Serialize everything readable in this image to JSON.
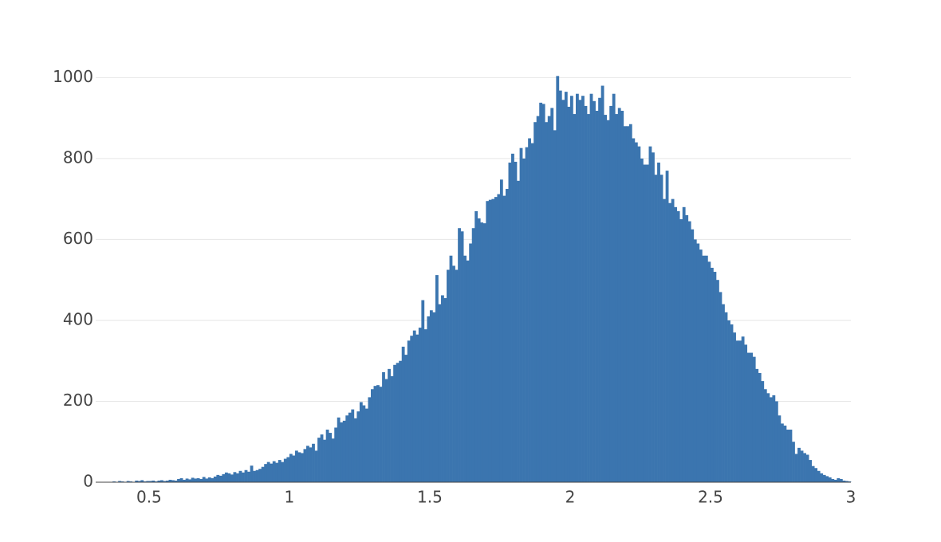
{
  "chart_data": {
    "type": "histogram",
    "color": "#3b75af",
    "grid": true,
    "xlim": [
      0.31,
      3
    ],
    "ylim": [
      0,
      1050
    ],
    "xticks": [
      0.5,
      1,
      1.5,
      2,
      2.5,
      3
    ],
    "yticks": [
      0,
      200,
      400,
      600,
      800,
      1000
    ],
    "bins": [
      0.31,
      0.32,
      0.33,
      0.34,
      0.35,
      0.36,
      0.37,
      0.38,
      0.39,
      0.4,
      0.41,
      0.42,
      0.43,
      0.44,
      0.45,
      0.46,
      0.47,
      0.48,
      0.49,
      0.5,
      0.51,
      0.52,
      0.53,
      0.54,
      0.55,
      0.56,
      0.57,
      0.58,
      0.59,
      0.6,
      0.61,
      0.62,
      0.63,
      0.64,
      0.65,
      0.66,
      0.67,
      0.68,
      0.69,
      0.7,
      0.71,
      0.72,
      0.73,
      0.74,
      0.75,
      0.76,
      0.77,
      0.78,
      0.79,
      0.8,
      0.81,
      0.82,
      0.83,
      0.84,
      0.85,
      0.86,
      0.87,
      0.88,
      0.89,
      0.9,
      0.91,
      0.92,
      0.93,
      0.94,
      0.95,
      0.96,
      0.97,
      0.98,
      0.99,
      1.0,
      1.01,
      1.02,
      1.03,
      1.04,
      1.05,
      1.06,
      1.07,
      1.08,
      1.09,
      1.1,
      1.11,
      1.12,
      1.13,
      1.14,
      1.15,
      1.16,
      1.17,
      1.18,
      1.19,
      1.2,
      1.21,
      1.22,
      1.23,
      1.24,
      1.25,
      1.26,
      1.27,
      1.28,
      1.29,
      1.3,
      1.31,
      1.32,
      1.33,
      1.34,
      1.35,
      1.36,
      1.37,
      1.38,
      1.39,
      1.4,
      1.41,
      1.42,
      1.43,
      1.44,
      1.45,
      1.46,
      1.47,
      1.48,
      1.49,
      1.5,
      1.51,
      1.52,
      1.53,
      1.54,
      1.55,
      1.56,
      1.57,
      1.58,
      1.59,
      1.6,
      1.61,
      1.62,
      1.63,
      1.64,
      1.65,
      1.66,
      1.67,
      1.68,
      1.69,
      1.7,
      1.71,
      1.72,
      1.73,
      1.74,
      1.75,
      1.76,
      1.77,
      1.78,
      1.79,
      1.8,
      1.81,
      1.82,
      1.83,
      1.84,
      1.85,
      1.86,
      1.87,
      1.88,
      1.89,
      1.9,
      1.91,
      1.92,
      1.93,
      1.94,
      1.95,
      1.96,
      1.97,
      1.98,
      1.99,
      2.0,
      2.01,
      2.02,
      2.03,
      2.04,
      2.05,
      2.06,
      2.07,
      2.08,
      2.09,
      2.1,
      2.11,
      2.12,
      2.13,
      2.14,
      2.15,
      2.16,
      2.17,
      2.18,
      2.19,
      2.2,
      2.21,
      2.22,
      2.23,
      2.24,
      2.25,
      2.26,
      2.27,
      2.28,
      2.29,
      2.3,
      2.31,
      2.32,
      2.33,
      2.34,
      2.35,
      2.36,
      2.37,
      2.38,
      2.39,
      2.4,
      2.41,
      2.42,
      2.43,
      2.44,
      2.45,
      2.46,
      2.47,
      2.48,
      2.49,
      2.5,
      2.51,
      2.52,
      2.53,
      2.54,
      2.55,
      2.56,
      2.57,
      2.58,
      2.59,
      2.6,
      2.61,
      2.62,
      2.63,
      2.64,
      2.65,
      2.66,
      2.67,
      2.68,
      2.69,
      2.7,
      2.71,
      2.72,
      2.73,
      2.74,
      2.75,
      2.76,
      2.77,
      2.78,
      2.79,
      2.8,
      2.81,
      2.82,
      2.83,
      2.84,
      2.85,
      2.86,
      2.87,
      2.88,
      2.89,
      2.9,
      2.91,
      2.92,
      2.93,
      2.94,
      2.95,
      2.96,
      2.97,
      2.98,
      2.99,
      3.0
    ],
    "values": [
      0,
      1,
      0,
      1,
      1,
      0,
      2,
      1,
      3,
      2,
      1,
      3,
      2,
      0,
      4,
      3,
      5,
      2,
      3,
      3,
      4,
      2,
      4,
      5,
      3,
      4,
      6,
      5,
      4,
      8,
      10,
      6,
      9,
      7,
      11,
      9,
      10,
      8,
      13,
      9,
      12,
      10,
      14,
      18,
      16,
      20,
      24,
      22,
      19,
      25,
      22,
      28,
      24,
      30,
      26,
      41,
      28,
      30,
      33,
      38,
      45,
      50,
      46,
      52,
      48,
      55,
      50,
      58,
      62,
      70,
      66,
      78,
      74,
      72,
      82,
      90,
      86,
      95,
      78,
      110,
      118,
      105,
      130,
      122,
      108,
      135,
      160,
      148,
      152,
      165,
      172,
      180,
      158,
      175,
      198,
      190,
      182,
      210,
      230,
      238,
      240,
      236,
      272,
      255,
      280,
      262,
      290,
      295,
      300,
      335,
      315,
      350,
      362,
      375,
      365,
      382,
      450,
      378,
      410,
      425,
      420,
      512,
      440,
      462,
      455,
      525,
      560,
      535,
      525,
      628,
      620,
      560,
      548,
      590,
      628,
      670,
      652,
      642,
      640,
      695,
      698,
      700,
      705,
      712,
      748,
      708,
      725,
      790,
      812,
      792,
      745,
      826,
      800,
      828,
      850,
      838,
      890,
      905,
      938,
      935,
      890,
      905,
      925,
      870,
      1004,
      968,
      945,
      965,
      928,
      955,
      910,
      960,
      945,
      955,
      930,
      910,
      960,
      942,
      918,
      950,
      980,
      908,
      895,
      930,
      960,
      910,
      925,
      918,
      880,
      880,
      885,
      850,
      840,
      830,
      800,
      785,
      785,
      830,
      815,
      760,
      790,
      760,
      700,
      770,
      690,
      700,
      680,
      670,
      650,
      680,
      660,
      645,
      625,
      600,
      590,
      575,
      560,
      560,
      545,
      530,
      520,
      500,
      470,
      440,
      420,
      400,
      390,
      370,
      350,
      350,
      360,
      340,
      320,
      320,
      310,
      280,
      270,
      250,
      230,
      220,
      210,
      215,
      200,
      165,
      145,
      140,
      130,
      130,
      100,
      70,
      85,
      78,
      72,
      68,
      55,
      40,
      35,
      28,
      22,
      18,
      15,
      12,
      8,
      6,
      10,
      8,
      4,
      3,
      2
    ]
  }
}
